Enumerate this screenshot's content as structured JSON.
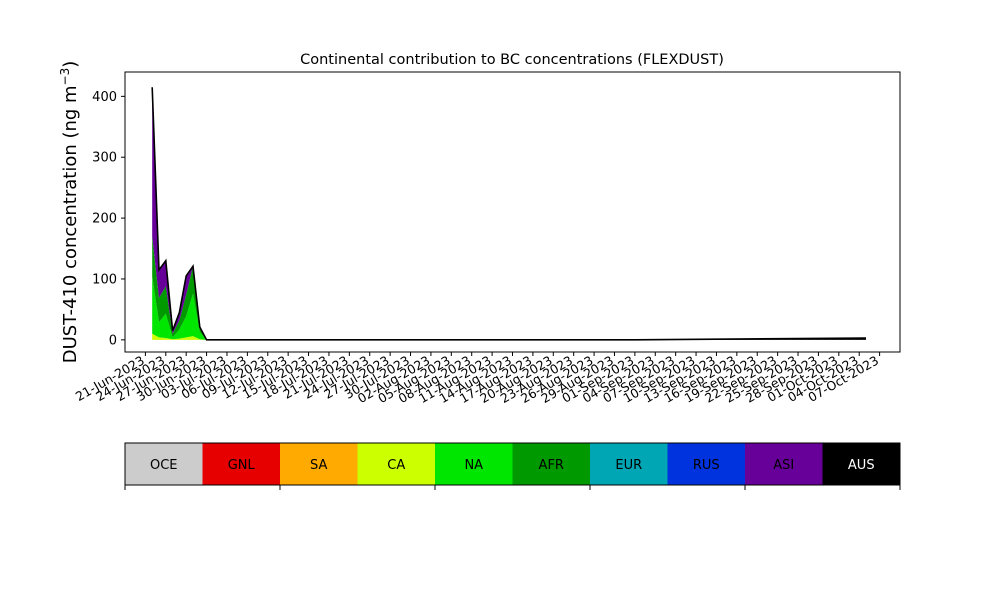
{
  "chart_data": {
    "type": "area",
    "title": "Continental contribution to BC concentrations (FLEXDUST)",
    "xlabel": "",
    "ylabel_main": "DUST-410 concentration (ng m",
    "ylabel_sup": "−3",
    "ylabel_close": ")",
    "ylim": [
      -20,
      440
    ],
    "yticks": [
      0,
      100,
      200,
      300,
      400
    ],
    "xlim": [
      "2023-06-18",
      "2023-10-10"
    ],
    "xtick_dates": [
      "2023-06-21",
      "2023-06-24",
      "2023-06-27",
      "2023-06-30",
      "2023-07-03",
      "2023-07-06",
      "2023-07-09",
      "2023-07-12",
      "2023-07-15",
      "2023-07-18",
      "2023-07-21",
      "2023-07-24",
      "2023-07-27",
      "2023-07-30",
      "2023-08-02",
      "2023-08-05",
      "2023-08-08",
      "2023-08-11",
      "2023-08-14",
      "2023-08-17",
      "2023-08-20",
      "2023-08-23",
      "2023-08-26",
      "2023-08-29",
      "2023-09-01",
      "2023-09-04",
      "2023-09-07",
      "2023-09-10",
      "2023-09-13",
      "2023-09-16",
      "2023-09-19",
      "2023-09-22",
      "2023-09-25",
      "2023-09-28",
      "2023-10-01",
      "2023-10-04",
      "2023-10-07"
    ],
    "xtick_labels": [
      "21-Jun-2023",
      "24-Jun-2023",
      "27-Jun-2023",
      "30-Jun-2023",
      "03-Jul-2023",
      "06-Jul-2023",
      "09-Jul-2023",
      "12-Jul-2023",
      "15-Jul-2023",
      "18-Jul-2023",
      "21-Jul-2023",
      "24-Jul-2023",
      "27-Jul-2023",
      "30-Jul-2023",
      "02-Aug-2023",
      "05-Aug-2023",
      "08-Aug-2023",
      "11-Aug-2023",
      "14-Aug-2023",
      "17-Aug-2023",
      "20-Aug-2023",
      "23-Aug-2023",
      "26-Aug-2023",
      "29-Aug-2023",
      "01-Sep-2023",
      "04-Sep-2023",
      "07-Sep-2023",
      "10-Sep-2023",
      "13-Sep-2023",
      "16-Sep-2023",
      "19-Sep-2023",
      "22-Sep-2023",
      "25-Sep-2023",
      "28-Sep-2023",
      "01-Oct-2023",
      "04-Oct-2023",
      "07-Oct-2023"
    ],
    "x": [
      "2023-06-22",
      "2023-06-23",
      "2023-06-24",
      "2023-06-25",
      "2023-06-26",
      "2023-06-27",
      "2023-06-28",
      "2023-06-29",
      "2023-06-30",
      "2023-07-01",
      "2023-07-05",
      "2023-08-01",
      "2023-09-01",
      "2023-10-05"
    ],
    "series": [
      {
        "name": "OCE",
        "color": "#cccccc",
        "values": [
          0,
          0,
          0,
          0,
          0,
          0,
          0,
          0,
          0,
          0,
          0,
          0,
          0,
          0
        ]
      },
      {
        "name": "GNL",
        "color": "#e60000",
        "values": [
          0,
          0,
          0,
          0,
          0,
          0,
          0,
          0,
          0,
          0,
          0,
          0,
          0,
          0
        ]
      },
      {
        "name": "SA",
        "color": "#ffaa00",
        "values": [
          0,
          0,
          0,
          0,
          0,
          0,
          0,
          0,
          0,
          0,
          0,
          0,
          0,
          0
        ]
      },
      {
        "name": "CA",
        "color": "#ccff00",
        "values": [
          10,
          4,
          3,
          1,
          2,
          4,
          6,
          1,
          0,
          0,
          0,
          0,
          0,
          0
        ]
      },
      {
        "name": "NA",
        "color": "#00e600",
        "values": [
          95,
          25,
          40,
          3,
          15,
          35,
          70,
          12,
          0,
          0,
          0,
          0,
          0,
          0
        ]
      },
      {
        "name": "AFR",
        "color": "#009900",
        "values": [
          65,
          40,
          45,
          6,
          15,
          35,
          45,
          8,
          0,
          0,
          0,
          0,
          0,
          0
        ]
      },
      {
        "name": "EUR",
        "color": "#00a6b4",
        "values": [
          0,
          0,
          0,
          0,
          0,
          0,
          0,
          0,
          0,
          0,
          0,
          0,
          0,
          0
        ]
      },
      {
        "name": "RUS",
        "color": "#0033dd",
        "values": [
          0,
          0,
          0,
          0,
          0,
          0,
          0,
          0,
          0,
          0,
          0,
          0,
          0,
          0
        ]
      },
      {
        "name": "ASI",
        "color": "#660099",
        "values": [
          245,
          46,
          42,
          5,
          13,
          31,
          0,
          0,
          0,
          0,
          0,
          0,
          0,
          0
        ]
      },
      {
        "name": "AUS",
        "color": "#000000",
        "values": [
          0,
          0,
          0,
          0,
          0,
          0,
          0,
          0,
          0,
          0,
          0,
          0,
          0,
          3
        ]
      }
    ],
    "colorbar": {
      "labels": [
        "OCE",
        "GNL",
        "SA",
        "CA",
        "NA",
        "AFR",
        "EUR",
        "RUS",
        "ASI",
        "AUS"
      ],
      "colors": [
        "#cccccc",
        "#e60000",
        "#ffaa00",
        "#ccff00",
        "#00e600",
        "#009900",
        "#00a6b4",
        "#0033dd",
        "#660099",
        "#000000"
      ],
      "label_colors": [
        "#000000",
        "#000000",
        "#000000",
        "#000000",
        "#000000",
        "#000000",
        "#000000",
        "#000000",
        "#000000",
        "#ffffff"
      ]
    },
    "grid": false,
    "legend": "colorbar below plot"
  }
}
